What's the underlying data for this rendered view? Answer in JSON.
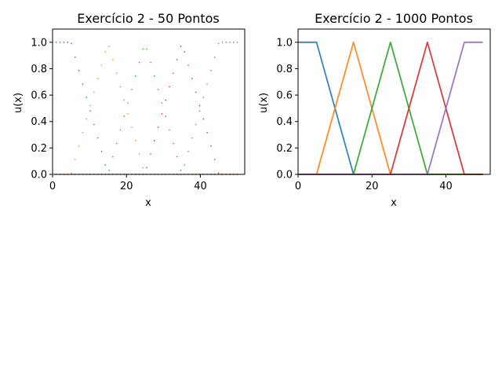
{
  "chart_data": [
    {
      "type": "scatter",
      "title": "Exercício 2 - 50 Pontos",
      "xlabel": "x",
      "ylabel": "u(x)",
      "xlim": [
        0,
        52
      ],
      "ylim": [
        0,
        1.1
      ],
      "xticks": [
        "0",
        "20",
        "40"
      ],
      "yticks": [
        "0.0",
        "0.2",
        "0.4",
        "0.6",
        "0.8",
        "1.0"
      ],
      "points": 50,
      "series": [
        {
          "color": "#1f77b4",
          "x": [
            0,
            5,
            15,
            50
          ],
          "y": [
            1,
            1,
            0,
            0
          ]
        },
        {
          "color": "#ff7f0e",
          "x": [
            0,
            5,
            15,
            25,
            50
          ],
          "y": [
            0,
            0,
            1,
            0,
            0
          ]
        },
        {
          "color": "#2ca02c",
          "x": [
            0,
            15,
            25,
            35,
            50
          ],
          "y": [
            0,
            0,
            1,
            0,
            0
          ]
        },
        {
          "color": "#d62728",
          "x": [
            0,
            25,
            35,
            45,
            50
          ],
          "y": [
            0,
            0,
            1,
            0,
            0
          ]
        },
        {
          "color": "#9467bd",
          "x": [
            0,
            35,
            45,
            50
          ],
          "y": [
            0,
            0,
            1,
            1
          ]
        }
      ]
    },
    {
      "type": "line",
      "title": "Exercício 2 - 1000 Pontos",
      "xlabel": "x",
      "ylabel": "u(x)",
      "xlim": [
        0,
        52
      ],
      "ylim": [
        0,
        1.1
      ],
      "xticks": [
        "0",
        "20",
        "40"
      ],
      "yticks": [
        "0.0",
        "0.2",
        "0.4",
        "0.6",
        "0.8",
        "1.0"
      ],
      "series": [
        {
          "color": "#1f77b4",
          "x": [
            0,
            5,
            15,
            50
          ],
          "y": [
            1,
            1,
            0,
            0
          ]
        },
        {
          "color": "#ff7f0e",
          "x": [
            0,
            5,
            15,
            25,
            50
          ],
          "y": [
            0,
            0,
            1,
            0,
            0
          ]
        },
        {
          "color": "#2ca02c",
          "x": [
            0,
            15,
            25,
            35,
            50
          ],
          "y": [
            0,
            0,
            1,
            0,
            0
          ]
        },
        {
          "color": "#d62728",
          "x": [
            0,
            25,
            35,
            45,
            50
          ],
          "y": [
            0,
            0,
            1,
            0,
            0
          ]
        },
        {
          "color": "#9467bd",
          "x": [
            0,
            35,
            45,
            50
          ],
          "y": [
            0,
            0,
            1,
            1
          ]
        }
      ]
    }
  ]
}
